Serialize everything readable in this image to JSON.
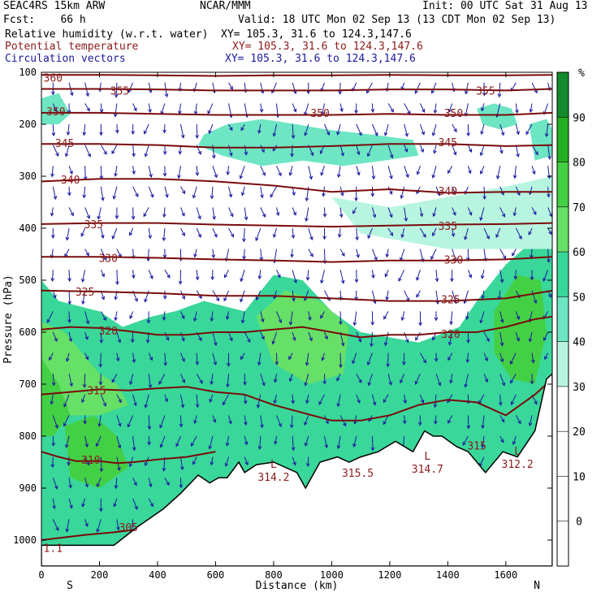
{
  "header": {
    "model": "SEAC4RS 15km ARW",
    "org": "NCAR/MMM",
    "init": "Init: 00 UTC Sat 31 Aug 13",
    "fcst": "Fcst:    66 h",
    "valid": "Valid: 18 UTC Mon 02 Sep 13 (13 CDT Mon 02 Sep 13)",
    "field1_name": "Relative humidity (w.r.t. water)",
    "field1_xy": "XY= 105.3, 31.6 to 124.3,147.6",
    "field2_name": "Potential temperature",
    "field2_xy": "XY= 105.3, 31.6 to 124.3,147.6",
    "field3_name": "Circulation vectors",
    "field3_xy": "XY= 105.3, 31.6 to 124.3,147.6"
  },
  "colors": {
    "theta": "#7a0a0a",
    "vectors": "#1a1aa0",
    "terrain": "#ffffff",
    "text_red": "#8b1a1a",
    "text_blue": "#1a1a9a"
  },
  "chart_data": {
    "type": "heatmap",
    "title": "Relative humidity (w.r.t. water)",
    "xlabel": "Distance (km)",
    "ylabel": "Pressure (hPa)",
    "xlim": [
      0,
      1760
    ],
    "ylim": [
      100,
      1050
    ],
    "y_scale": "linear-inverted",
    "x_ticks": [
      0,
      200,
      400,
      600,
      800,
      1000,
      1200,
      1400,
      1600
    ],
    "y_ticks": [
      100,
      200,
      300,
      400,
      500,
      600,
      700,
      800,
      900,
      1000
    ],
    "x_end_labels": {
      "left": "S",
      "right": "N"
    },
    "colorbar": {
      "unit": "%",
      "ticks": [
        0,
        10,
        20,
        30,
        40,
        50,
        60,
        70,
        80,
        90
      ],
      "levels": [
        {
          "from": 0,
          "to": 30,
          "color": "#ffffff"
        },
        {
          "from": 30,
          "to": 40,
          "color": "#b8f5e0"
        },
        {
          "from": 40,
          "to": 50,
          "color": "#6ee6c3"
        },
        {
          "from": 50,
          "to": 60,
          "color": "#3ad79a"
        },
        {
          "from": 60,
          "to": 70,
          "color": "#66e066"
        },
        {
          "from": 70,
          "to": 80,
          "color": "#44d044"
        },
        {
          "from": 80,
          "to": 90,
          "color": "#22b022"
        },
        {
          "from": 90,
          "to": 100,
          "color": "#138a2c"
        }
      ]
    },
    "rh_regions": [
      {
        "level": 50,
        "points": [
          [
            0,
            500
          ],
          [
            60,
            540
          ],
          [
            200,
            560
          ],
          [
            280,
            590
          ],
          [
            380,
            570
          ],
          [
            460,
            560
          ],
          [
            560,
            540
          ],
          [
            700,
            560
          ],
          [
            800,
            490
          ],
          [
            900,
            500
          ],
          [
            1000,
            560
          ],
          [
            1100,
            600
          ],
          [
            1300,
            620
          ],
          [
            1440,
            590
          ],
          [
            1500,
            540
          ],
          [
            1600,
            470
          ],
          [
            1700,
            420
          ],
          [
            1760,
            360
          ],
          [
            1760,
            1050
          ],
          [
            0,
            1050
          ]
        ]
      },
      {
        "level": 60,
        "points": [
          [
            0,
            580
          ],
          [
            80,
            600
          ],
          [
            140,
            640
          ],
          [
            200,
            680
          ],
          [
            260,
            700
          ],
          [
            300,
            740
          ],
          [
            200,
            760
          ],
          [
            0,
            760
          ]
        ]
      },
      {
        "level": 70,
        "points": [
          [
            0,
            650
          ],
          [
            60,
            700
          ],
          [
            100,
            760
          ],
          [
            40,
            800
          ],
          [
            0,
            800
          ]
        ]
      },
      {
        "level": 70,
        "points": [
          [
            80,
            780
          ],
          [
            180,
            760
          ],
          [
            260,
            800
          ],
          [
            300,
            860
          ],
          [
            200,
            900
          ],
          [
            100,
            880
          ]
        ]
      },
      {
        "level": 60,
        "points": [
          [
            740,
            570
          ],
          [
            840,
            520
          ],
          [
            960,
            540
          ],
          [
            1060,
            590
          ],
          [
            1040,
            680
          ],
          [
            920,
            700
          ],
          [
            800,
            660
          ]
        ]
      },
      {
        "level": 70,
        "points": [
          [
            1560,
            560
          ],
          [
            1640,
            490
          ],
          [
            1720,
            500
          ],
          [
            1740,
            600
          ],
          [
            1700,
            700
          ],
          [
            1620,
            690
          ],
          [
            1560,
            640
          ]
        ]
      },
      {
        "level": 50,
        "points": [
          [
            1240,
            640
          ],
          [
            1300,
            620
          ],
          [
            1360,
            660
          ],
          [
            1320,
            700
          ],
          [
            1260,
            690
          ]
        ]
      },
      {
        "level": 40,
        "points": [
          [
            0,
            150
          ],
          [
            60,
            140
          ],
          [
            100,
            180
          ],
          [
            60,
            200
          ],
          [
            0,
            200
          ]
        ]
      },
      {
        "level": 40,
        "points": [
          [
            560,
            220
          ],
          [
            640,
            200
          ],
          [
            760,
            190
          ],
          [
            880,
            200
          ],
          [
            980,
            210
          ],
          [
            1140,
            220
          ],
          [
            1280,
            230
          ],
          [
            1300,
            260
          ],
          [
            1180,
            270
          ],
          [
            1040,
            280
          ],
          [
            900,
            270
          ],
          [
            760,
            280
          ],
          [
            620,
            260
          ],
          [
            540,
            240
          ]
        ]
      },
      {
        "level": 40,
        "points": [
          [
            1500,
            170
          ],
          [
            1560,
            160
          ],
          [
            1620,
            170
          ],
          [
            1640,
            200
          ],
          [
            1580,
            210
          ],
          [
            1520,
            200
          ]
        ]
      },
      {
        "level": 40,
        "points": [
          [
            1680,
            200
          ],
          [
            1740,
            190
          ],
          [
            1760,
            210
          ],
          [
            1760,
            260
          ],
          [
            1700,
            270
          ]
        ]
      },
      {
        "level": 30,
        "points": [
          [
            1000,
            340
          ],
          [
            1200,
            360
          ],
          [
            1400,
            340
          ],
          [
            1600,
            320
          ],
          [
            1760,
            300
          ],
          [
            1760,
            440
          ],
          [
            1400,
            440
          ],
          [
            1100,
            410
          ]
        ]
      }
    ],
    "series": [
      {
        "name": "305",
        "x": [
          0,
          150,
          250,
          400,
          600
        ],
        "y": [
          1000,
          990,
          985,
          975,
          960
        ]
      },
      {
        "name": "310",
        "x": [
          0,
          60,
          120,
          200,
          260,
          320,
          400,
          500,
          600
        ],
        "y": [
          830,
          840,
          848,
          848,
          852,
          850,
          845,
          840,
          830
        ]
      },
      {
        "name": "315",
        "x": [
          0,
          100,
          200,
          300,
          400,
          500,
          600,
          700,
          800,
          900,
          1000,
          1100,
          1200,
          1300,
          1400,
          1500,
          1600,
          1700,
          1760
        ],
        "y": [
          720,
          715,
          710,
          712,
          708,
          705,
          715,
          720,
          740,
          755,
          770,
          770,
          760,
          740,
          730,
          735,
          760,
          720,
          690
        ]
      },
      {
        "name": "320",
        "x": [
          0,
          100,
          200,
          300,
          400,
          500,
          600,
          700,
          800,
          900,
          1000,
          1100,
          1200,
          1300,
          1400,
          1500,
          1600,
          1700,
          1760
        ],
        "y": [
          595,
          590,
          592,
          598,
          605,
          605,
          600,
          600,
          595,
          590,
          600,
          610,
          605,
          605,
          600,
          600,
          590,
          575,
          570
        ]
      },
      {
        "name": "325",
        "x": [
          0,
          200,
          400,
          600,
          800,
          1000,
          1200,
          1400,
          1600,
          1760
        ],
        "y": [
          520,
          522,
          525,
          530,
          530,
          535,
          540,
          540,
          535,
          520
        ]
      },
      {
        "name": "330",
        "x": [
          0,
          200,
          400,
          600,
          800,
          1000,
          1200,
          1400,
          1600,
          1760
        ],
        "y": [
          455,
          455,
          457,
          460,
          462,
          465,
          462,
          462,
          460,
          455
        ]
      },
      {
        "name": "335",
        "x": [
          0,
          200,
          400,
          600,
          800,
          1000,
          1200,
          1400,
          1600,
          1760
        ],
        "y": [
          392,
          390,
          390,
          393,
          395,
          397,
          395,
          393,
          392,
          390
        ]
      },
      {
        "name": "340",
        "x": [
          0,
          200,
          400,
          600,
          800,
          1000,
          1200,
          1400,
          1600,
          1760
        ],
        "y": [
          310,
          305,
          305,
          310,
          318,
          330,
          325,
          332,
          330,
          330
        ]
      },
      {
        "name": "345",
        "x": [
          0,
          200,
          400,
          600,
          800,
          1000,
          1200,
          1400,
          1600,
          1760
        ],
        "y": [
          238,
          238,
          240,
          245,
          245,
          242,
          238,
          238,
          242,
          240
        ]
      },
      {
        "name": "350",
        "x": [
          0,
          200,
          400,
          600,
          800,
          1000,
          1200,
          1400,
          1600,
          1760
        ],
        "y": [
          178,
          178,
          180,
          182,
          182,
          182,
          180,
          182,
          182,
          178
        ]
      },
      {
        "name": "355",
        "x": [
          0,
          200,
          400,
          600,
          800,
          1000,
          1200,
          1400,
          1600,
          1760
        ],
        "y": [
          132,
          132,
          133,
          135,
          135,
          135,
          133,
          133,
          135,
          132
        ]
      },
      {
        "name": "360",
        "x": [
          0,
          200,
          400,
          600,
          800,
          1000,
          1200,
          1400,
          1600,
          1760
        ],
        "y": [
          105,
          105,
          106,
          107,
          106,
          106,
          105,
          106,
          106,
          105
        ]
      }
    ],
    "contour_labels": [
      {
        "text": "360",
        "x": 40,
        "y": 110
      },
      {
        "text": "355",
        "x": 270,
        "y": 135
      },
      {
        "text": "355",
        "x": 1530,
        "y": 135
      },
      {
        "text": "350",
        "x": 50,
        "y": 175
      },
      {
        "text": "350",
        "x": 960,
        "y": 178
      },
      {
        "text": "350",
        "x": 1420,
        "y": 178
      },
      {
        "text": "345",
        "x": 80,
        "y": 236
      },
      {
        "text": "345",
        "x": 1400,
        "y": 234
      },
      {
        "text": "340",
        "x": 100,
        "y": 306
      },
      {
        "text": "340",
        "x": 1400,
        "y": 328
      },
      {
        "text": "335",
        "x": 180,
        "y": 392
      },
      {
        "text": "335",
        "x": 1400,
        "y": 395
      },
      {
        "text": "330",
        "x": 230,
        "y": 457
      },
      {
        "text": "330",
        "x": 1420,
        "y": 460
      },
      {
        "text": "325",
        "x": 150,
        "y": 522
      },
      {
        "text": "325",
        "x": 1410,
        "y": 537
      },
      {
        "text": "320",
        "x": 230,
        "y": 597
      },
      {
        "text": "320",
        "x": 1410,
        "y": 603
      },
      {
        "text": "315",
        "x": 190,
        "y": 712
      },
      {
        "text": "315",
        "x": 1500,
        "y": 818
      },
      {
        "text": "310",
        "x": 170,
        "y": 845
      },
      {
        "text": "315.5",
        "x": 1090,
        "y": 870
      },
      {
        "text": "305",
        "x": 300,
        "y": 975
      },
      {
        "text": "1.1",
        "x": 40,
        "y": 1015
      }
    ],
    "low_markers": [
      {
        "text": "L",
        "value": "314.2",
        "x": 800,
        "y": 870
      },
      {
        "text": "L",
        "value": "314.7",
        "x": 1330,
        "y": 855
      },
      {
        "text": "L",
        "value": "312.2",
        "x": 1640,
        "y": 845
      }
    ],
    "terrain": [
      [
        0,
        1010
      ],
      [
        250,
        1010
      ],
      [
        330,
        975
      ],
      [
        420,
        940
      ],
      [
        480,
        910
      ],
      [
        540,
        875
      ],
      [
        580,
        890
      ],
      [
        610,
        880
      ],
      [
        640,
        880
      ],
      [
        680,
        850
      ],
      [
        700,
        870
      ],
      [
        740,
        855
      ],
      [
        800,
        850
      ],
      [
        880,
        870
      ],
      [
        910,
        900
      ],
      [
        960,
        850
      ],
      [
        1020,
        840
      ],
      [
        1060,
        850
      ],
      [
        1100,
        840
      ],
      [
        1160,
        830
      ],
      [
        1220,
        810
      ],
      [
        1280,
        830
      ],
      [
        1320,
        790
      ],
      [
        1350,
        800
      ],
      [
        1380,
        800
      ],
      [
        1430,
        820
      ],
      [
        1470,
        830
      ],
      [
        1530,
        870
      ],
      [
        1590,
        830
      ],
      [
        1640,
        840
      ],
      [
        1700,
        790
      ],
      [
        1740,
        690
      ],
      [
        1760,
        680
      ],
      [
        1760,
        1050
      ],
      [
        0,
        1050
      ]
    ]
  }
}
